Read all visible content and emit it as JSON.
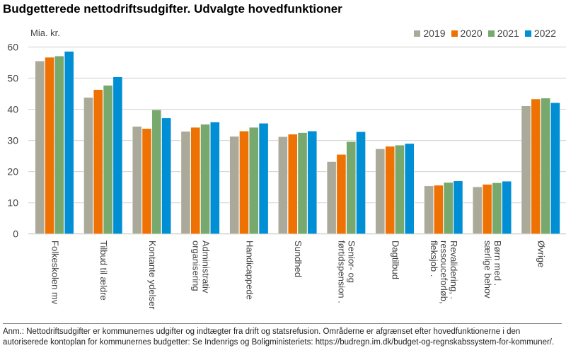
{
  "chart_data": {
    "type": "bar",
    "title": "Budgetterede nettodriftsudgifter. Udvalgte hovedfunktioner",
    "ylabel": "Mia. kr.",
    "xlabel": "",
    "ylim": [
      0,
      60
    ],
    "yticks": [
      "0",
      "10",
      "20",
      "30",
      "40",
      "50",
      "60"
    ],
    "grid": true,
    "legend_position": "top-right",
    "categories": [
      "Folkeskolen mv",
      "Tilbud til ældre",
      "Kontante ydelser",
      "Administrativ\norganisering",
      "Handicappede",
      "Sundhed",
      "Senior- og\nførtidspension   .",
      "Dagtilbud",
      "Revalidering, .\nressouceforløb,\nfleksjob     .",
      "Børn med    .\nsærlige behov",
      "Øvrige"
    ],
    "series": [
      {
        "name": "2019",
        "color": "#ABAA9A",
        "values": [
          55.5,
          43.8,
          34.5,
          32.9,
          31.3,
          31.2,
          23.2,
          27.3,
          15.4,
          15.1,
          41.1
        ]
      },
      {
        "name": "2020",
        "color": "#EE7203",
        "values": [
          56.7,
          46.3,
          33.8,
          34.2,
          33.0,
          32.0,
          25.5,
          28.1,
          15.6,
          15.9,
          43.3
        ]
      },
      {
        "name": "2021",
        "color": "#77A86E",
        "values": [
          57.1,
          47.7,
          39.8,
          35.2,
          34.2,
          32.5,
          29.6,
          28.5,
          16.5,
          16.4,
          43.6
        ]
      },
      {
        "name": "2022",
        "color": "#008ED4",
        "values": [
          58.6,
          50.4,
          37.2,
          35.9,
          35.5,
          33.0,
          32.8,
          29.0,
          17.0,
          16.9,
          42.1
        ]
      }
    ]
  },
  "note": "Anm.: Nettodriftsudgifter er kommunernes udgifter og indtægter fra drift og statsrefusion. Områderne er afgrænset efter hovedfunktionerne i den autoriserede kontoplan for kommunernes budgetter: Se Indenrigs og Boligministeriets: https://budregn.im.dk/budget-og-regnskabssystem-for-kommuner/."
}
